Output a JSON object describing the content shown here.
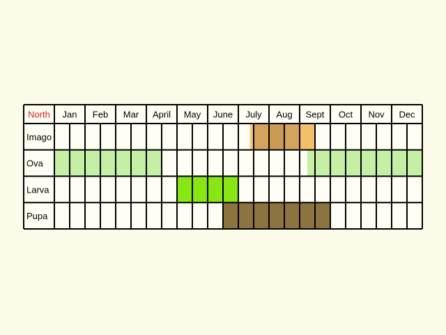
{
  "chart_data": {
    "type": "table",
    "corner_label": "North",
    "corner_color": "#e0201b",
    "months": [
      "Jan",
      "Feb",
      "Mar",
      "April",
      "May",
      "June",
      "July",
      "Aug",
      "Sept",
      "Oct",
      "Nov",
      "Dec"
    ],
    "divisions_per_month": 2,
    "rows": [
      {
        "label": "Imago",
        "fills": [
          {
            "from": 12.75,
            "to": 13,
            "color": "#f4c87d"
          },
          {
            "from": 13,
            "to": 14,
            "color": "#d4a35e"
          },
          {
            "from": 14,
            "to": 15,
            "color": "#c99a55"
          },
          {
            "from": 15,
            "to": 16,
            "color": "#d4a35e"
          },
          {
            "from": 16,
            "to": 17,
            "color": "#f2c06b"
          }
        ]
      },
      {
        "label": "Ova",
        "fills": [
          {
            "from": 0,
            "to": 7,
            "color": "#c6efa6"
          },
          {
            "from": 16.5,
            "to": 24,
            "color": "#c6efa6"
          }
        ]
      },
      {
        "label": "Larva",
        "fills": [
          {
            "from": 8,
            "to": 12,
            "color": "#87e614"
          }
        ]
      },
      {
        "label": "Pupa",
        "fills": [
          {
            "from": 11,
            "to": 18,
            "color": "#8c7441"
          }
        ]
      }
    ],
    "colors": {
      "background": "#fcfbea",
      "cell": "#fffef4",
      "border": "#000000"
    }
  }
}
